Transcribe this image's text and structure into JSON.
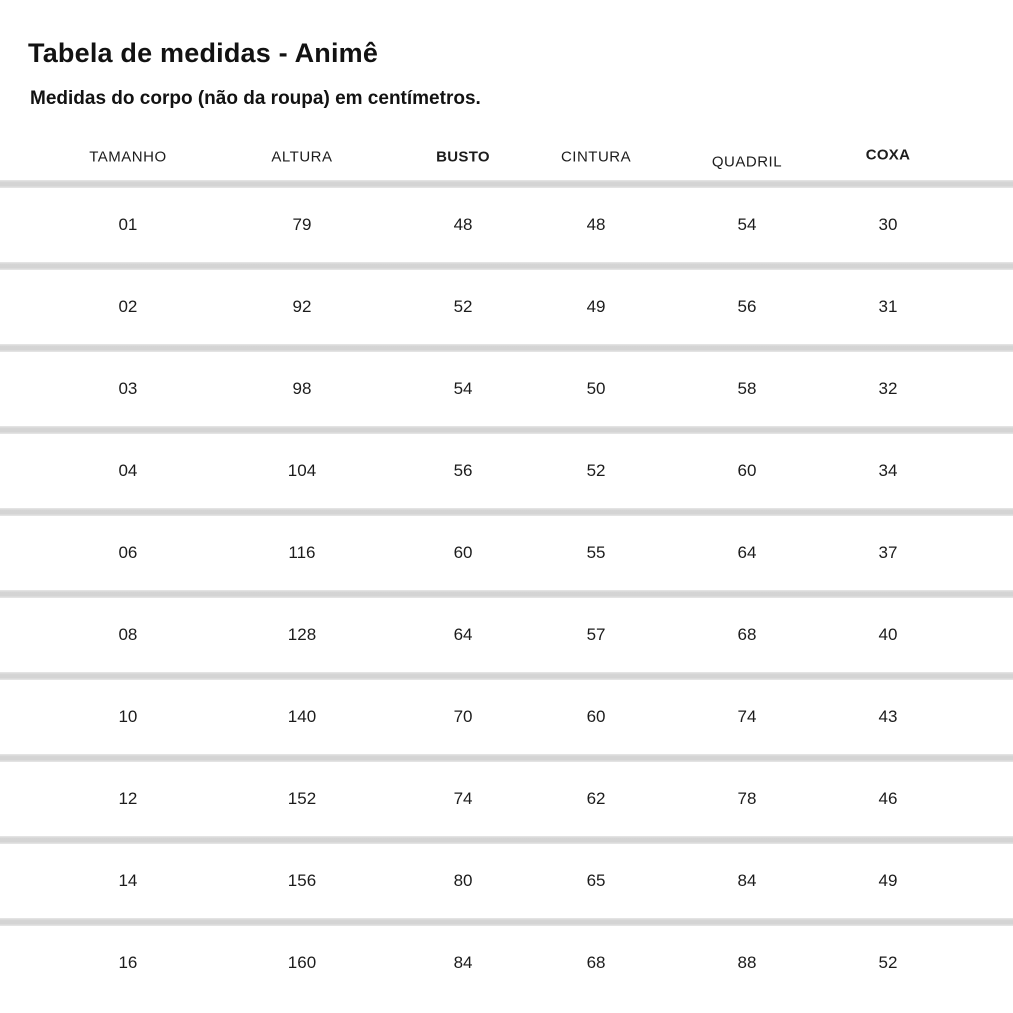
{
  "header": {
    "title": "Tabela de medidas - Animê",
    "subtitle": "Medidas do corpo (não da roupa) em centímetros."
  },
  "colors": {
    "background": "#ffffff",
    "text": "#1c1c1c",
    "separator": "#d4d4d4"
  },
  "chart_data": {
    "type": "table",
    "title": "Tabela de medidas - Animê",
    "subtitle": "Medidas do corpo (não da roupa) em centímetros.",
    "unit": "centímetros",
    "columns": [
      "TAMANHO",
      "ALTURA",
      "BUSTO",
      "CINTURA",
      "QUADRIL",
      "COXA"
    ],
    "rows": [
      [
        "01",
        79,
        48,
        48,
        54,
        30
      ],
      [
        "02",
        92,
        52,
        49,
        56,
        31
      ],
      [
        "03",
        98,
        54,
        50,
        58,
        32
      ],
      [
        "04",
        104,
        56,
        52,
        60,
        34
      ],
      [
        "06",
        116,
        60,
        55,
        64,
        37
      ],
      [
        "08",
        128,
        64,
        57,
        68,
        40
      ],
      [
        "10",
        140,
        70,
        60,
        74,
        43
      ],
      [
        "12",
        152,
        74,
        62,
        78,
        46
      ],
      [
        "14",
        156,
        80,
        65,
        84,
        49
      ],
      [
        "16",
        160,
        84,
        68,
        88,
        52
      ]
    ]
  }
}
